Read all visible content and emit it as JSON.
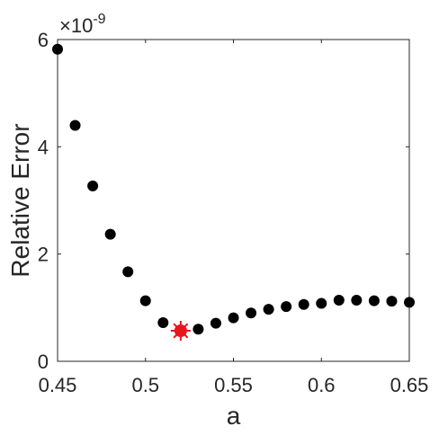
{
  "chart_data": {
    "type": "scatter",
    "xlabel": "a",
    "ylabel": "Relative Error",
    "y_exponent_label": "×10",
    "y_exponent_power": "-9",
    "xlim": [
      0.45,
      0.65
    ],
    "ylim": [
      0,
      6
    ],
    "x_ticks": [
      {
        "value": 0.45,
        "label": "0.45"
      },
      {
        "value": 0.5,
        "label": "0.5"
      },
      {
        "value": 0.55,
        "label": "0.55"
      },
      {
        "value": 0.6,
        "label": "0.6"
      },
      {
        "value": 0.65,
        "label": "0.65"
      }
    ],
    "y_ticks": [
      {
        "value": 0,
        "label": "0"
      },
      {
        "value": 2,
        "label": "2"
      },
      {
        "value": 4,
        "label": "4"
      },
      {
        "value": 6,
        "label": "6"
      }
    ],
    "y_scale_factor": 1e-09,
    "grid": false,
    "series": [
      {
        "marker": "filled-circle",
        "color": "#000000",
        "x": [
          0.45,
          0.46,
          0.47,
          0.48,
          0.49,
          0.5,
          0.51,
          0.53,
          0.54,
          0.55,
          0.56,
          0.57,
          0.58,
          0.59,
          0.6,
          0.61,
          0.62,
          0.63,
          0.64,
          0.65
        ],
        "y": [
          5.82,
          4.4,
          3.27,
          2.37,
          1.67,
          1.13,
          0.72,
          0.6,
          0.71,
          0.81,
          0.9,
          0.97,
          1.02,
          1.06,
          1.08,
          1.14,
          1.14,
          1.13,
          1.12,
          1.1
        ]
      },
      {
        "marker": "star-circle",
        "color": "#e8161b",
        "x": [
          0.52
        ],
        "y": [
          0.57
        ]
      }
    ]
  }
}
